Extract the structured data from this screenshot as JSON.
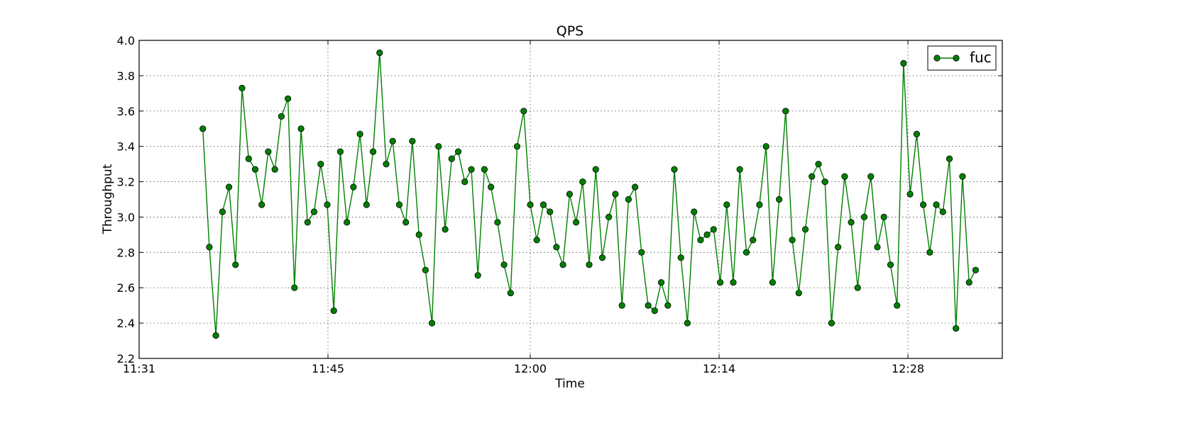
{
  "chart_data": {
    "type": "line",
    "title": "QPS",
    "xlabel": "Time",
    "ylabel": "Throughput",
    "x_axis": {
      "range": [
        "11:31",
        "12:35"
      ],
      "ticks": [
        "11:31",
        "11:45",
        "12:00",
        "12:14",
        "12:28"
      ],
      "tick_values": [
        0,
        14,
        29,
        43,
        57
      ]
    },
    "y_axis": {
      "range": [
        2.2,
        4.0
      ],
      "ticks": [
        "2.2",
        "2.4",
        "2.6",
        "2.8",
        "3.0",
        "3.2",
        "3.4",
        "3.6",
        "3.8",
        "4.0"
      ]
    },
    "grid": true,
    "legend_position": "top-right",
    "series": [
      {
        "name": "fuc",
        "color": "#008000",
        "marker": "circle",
        "x_start": 4.72,
        "x_step": 0.4856,
        "values": [
          3.5,
          2.83,
          2.33,
          3.03,
          3.17,
          2.73,
          3.73,
          3.33,
          3.27,
          3.07,
          3.37,
          3.27,
          3.57,
          3.67,
          2.6,
          3.5,
          2.97,
          3.03,
          3.3,
          3.07,
          2.47,
          3.37,
          2.97,
          3.17,
          3.47,
          3.07,
          3.37,
          3.93,
          3.3,
          3.43,
          3.07,
          2.97,
          3.43,
          2.9,
          2.7,
          2.4,
          3.4,
          2.93,
          3.33,
          3.37,
          3.2,
          3.27,
          2.67,
          3.27,
          3.17,
          2.97,
          2.73,
          2.57,
          3.4,
          3.6,
          3.07,
          2.87,
          3.07,
          3.03,
          2.83,
          2.73,
          3.13,
          2.97,
          3.2,
          2.73,
          3.27,
          2.77,
          3.0,
          3.13,
          2.5,
          3.1,
          3.17,
          2.8,
          2.5,
          2.47,
          2.63,
          2.5,
          3.27,
          2.77,
          2.4,
          3.03,
          2.87,
          2.9,
          2.93,
          2.63,
          3.07,
          2.63,
          3.27,
          2.8,
          2.87,
          3.07,
          3.4,
          2.63,
          3.1,
          3.6,
          2.87,
          2.57,
          2.93,
          3.23,
          3.3,
          3.2,
          2.4,
          2.83,
          3.23,
          2.97,
          2.6,
          3.0,
          3.23,
          2.83,
          3.0,
          2.73,
          2.5,
          3.87,
          3.13,
          3.47,
          3.07,
          2.8,
          3.07,
          3.03,
          3.33,
          2.37,
          3.23,
          2.63,
          2.7
        ]
      }
    ]
  }
}
